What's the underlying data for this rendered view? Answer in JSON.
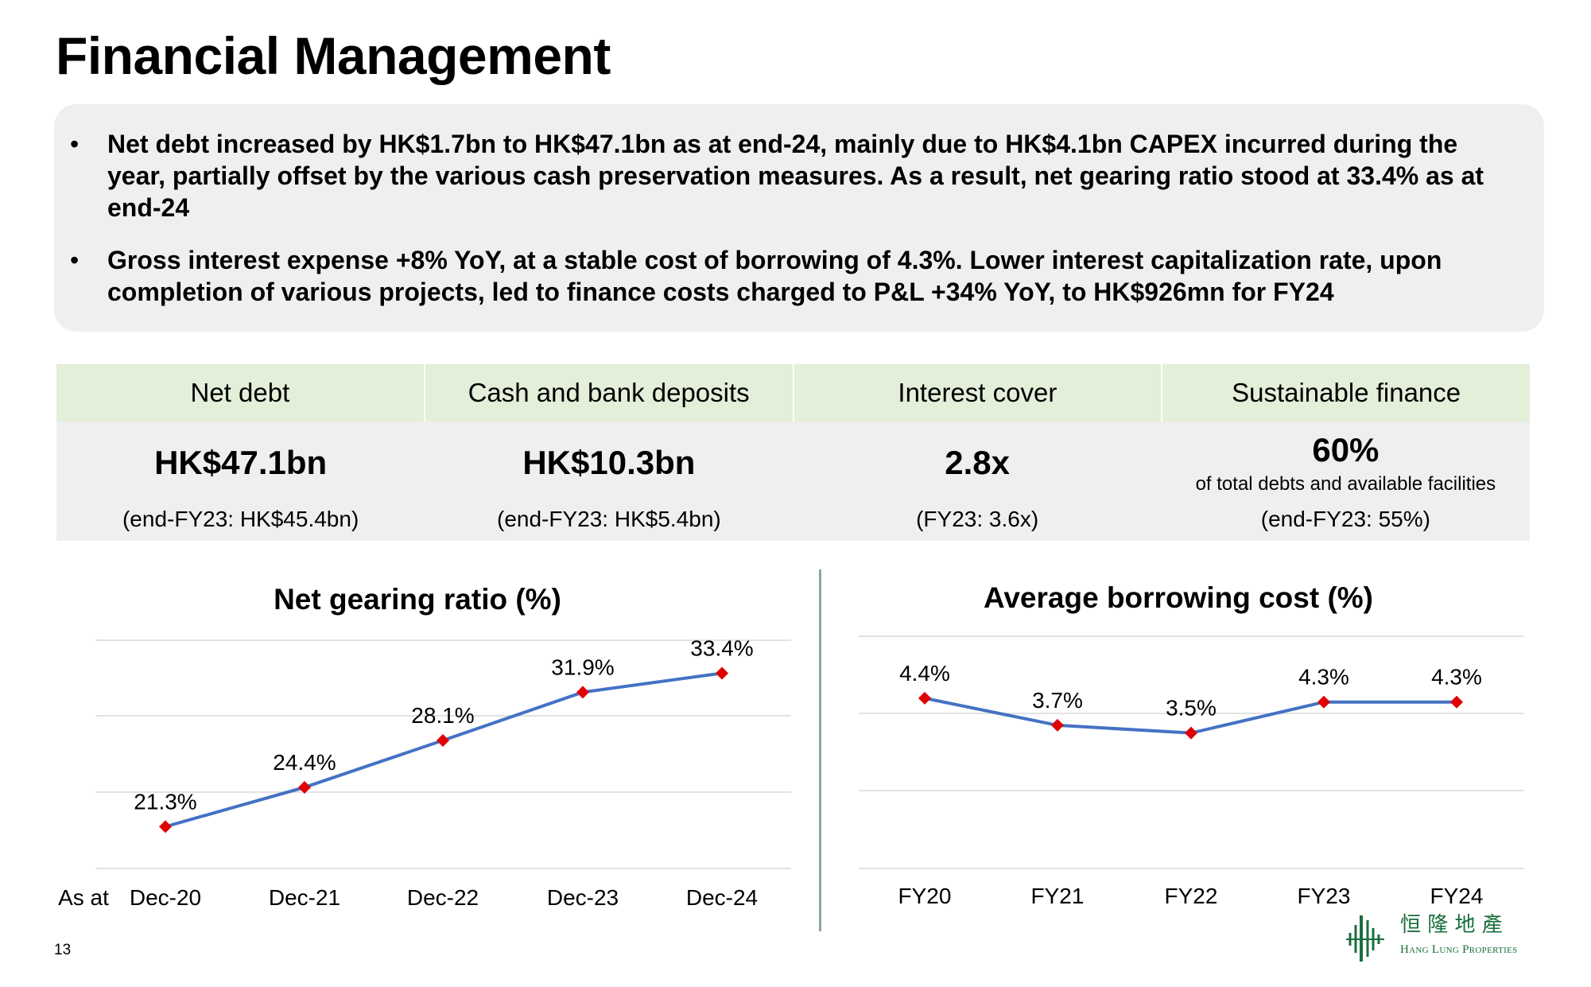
{
  "title": "Financial Management",
  "summary": [
    "Net debt increased by HK$1.7bn to HK$47.1bn as at end-24, mainly due to HK$4.1bn CAPEX incurred during the year, partially offset by the various cash preservation measures. As a result, net gearing ratio stood at 33.4% as at end-24",
    "Gross interest expense +8% YoY, at a stable cost of borrowing of 4.3%. Lower interest capitalization rate, upon completion of various projects, led to finance costs charged to P&L +34% YoY, to HK$926mn for FY24"
  ],
  "bullet": "•",
  "kpi": [
    {
      "label": "Net debt",
      "value": "HK$47.1bn",
      "note": "",
      "compare": "(end-FY23: HK$45.4bn)"
    },
    {
      "label": "Cash and bank deposits",
      "value": "HK$10.3bn",
      "note": "",
      "compare": "(end-FY23: HK$5.4bn)"
    },
    {
      "label": "Interest cover",
      "value": "2.8x",
      "note": "",
      "compare": "(FY23: 3.6x)"
    },
    {
      "label": "Sustainable finance",
      "value": "60%",
      "note": "of total debts and available facilities",
      "compare": "(end-FY23: 55%)"
    }
  ],
  "chart_data": [
    {
      "type": "line",
      "title": "Net gearing ratio (%)",
      "x_prefix": "As at",
      "categories": [
        "Dec-20",
        "Dec-21",
        "Dec-22",
        "Dec-23",
        "Dec-24"
      ],
      "values": [
        21.3,
        24.4,
        28.1,
        31.9,
        33.4
      ],
      "labels": [
        "21.3%",
        "24.4%",
        "28.1%",
        "31.9%",
        "33.4%"
      ],
      "ylim": [
        18,
        36
      ],
      "grid": true,
      "line_color": "#4472c4",
      "marker_color": "#e00000"
    },
    {
      "type": "line",
      "title": "Average borrowing cost (%)",
      "categories": [
        "FY20",
        "FY21",
        "FY22",
        "FY23",
        "FY24"
      ],
      "values": [
        4.4,
        3.7,
        3.5,
        4.3,
        4.3
      ],
      "labels": [
        "4.4%",
        "3.7%",
        "3.5%",
        "4.3%",
        "4.3%"
      ],
      "ylim": [
        0,
        6
      ],
      "grid": true,
      "line_color": "#4472c4",
      "marker_color": "#e00000"
    }
  ],
  "page_number": "13",
  "logo": {
    "chinese": "恒 隆 地 產",
    "english": "Hang Lung Properties",
    "color": "#1a6e3c"
  }
}
